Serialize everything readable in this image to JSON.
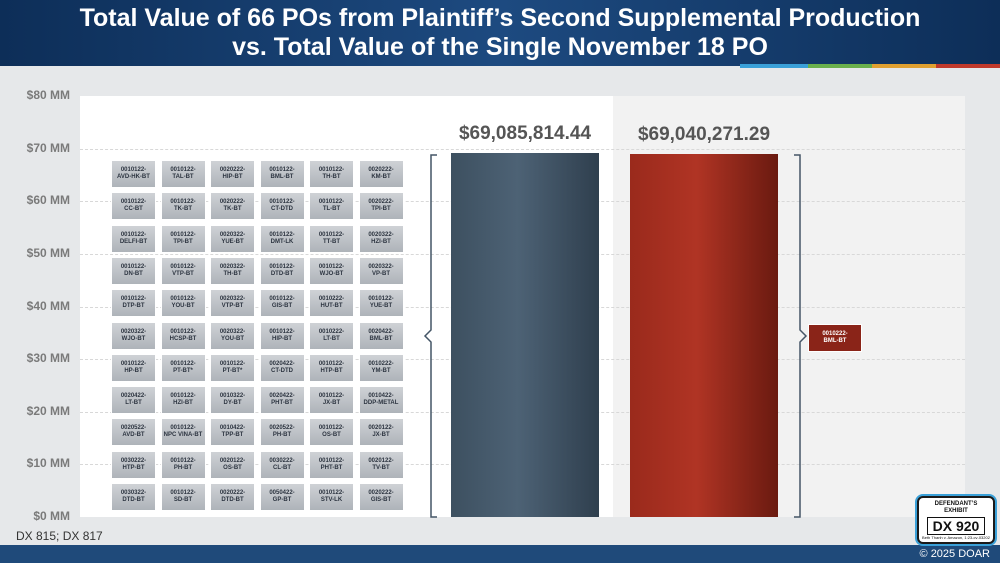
{
  "title_line1": "Total Value of 66 POs from Plaintiff’s Second Supplemental Production",
  "title_line2": "vs. Total Value of the Single November 18 PO",
  "colors": {
    "header": "#123a6b",
    "accent": [
      "#3aa0d8",
      "#6ab04c",
      "#e0a030",
      "#c0392b"
    ],
    "bar_blue": "#4a5d6e",
    "bar_red": "#a8301f"
  },
  "chart_data": {
    "type": "bar",
    "categories": [
      "66 POs from Plaintiff’s Second Supplemental Production",
      "Single November 18 PO"
    ],
    "values": [
      69085814.44,
      69040271.29
    ],
    "value_labels": [
      "$69,085,814.44",
      "$69,040,271.29"
    ],
    "ylim": [
      0,
      80000000
    ],
    "yticks": [
      "$0 MM",
      "$10 MM",
      "$20 MM",
      "$30 MM",
      "$40 MM",
      "$50 MM",
      "$60 MM",
      "$70 MM",
      "$80 MM"
    ],
    "grid": true,
    "po_grid": [
      [
        "0010122-\nAVD-HK-BT",
        "0010122-\nTAL-BT",
        "0020222-\nHIP-BT",
        "0010122-\nBML-BT",
        "0010122-\nTH-BT",
        "0020222-\nKM-BT"
      ],
      [
        "0010122-\nCC-BT",
        "0010122-\nTK-BT",
        "0020222-\nTK-BT",
        "0010122-\nCT-DTD",
        "0010122-\nTL-BT",
        "0020222-\nTPI-BT"
      ],
      [
        "0010122-\nDELFI-BT",
        "0010122-\nTPI-BT",
        "0020322-\nYUE-BT",
        "0010122-\nDMT-LK",
        "0010122-\nTT-BT",
        "0020322-\nHZI-BT"
      ],
      [
        "0010122-\nDN-BT",
        "0010122-\nVTP-BT",
        "0020322-\nTH-BT",
        "0010122-\nDTD-BT",
        "0010122-\nWJO-BT",
        "0020322-\nVP-BT"
      ],
      [
        "0010122-\nDTP-BT",
        "0010122-\nYOU-BT",
        "0020322-\nVTP-BT",
        "0010122-\nGIS-BT",
        "0010222-\nHUT-BT",
        "0010122-\nYUE-BT"
      ],
      [
        "0020322-\nWJO-BT",
        "0010122-\nHCSP-BT",
        "0020322-\nYOU-BT",
        "0010122-\nHIP-BT",
        "0010222-\nLT-BT",
        "0020422-\nBML-BT"
      ],
      [
        "0010122-\nHP-BT",
        "0010122-\nPT-BT*",
        "0010122-\nPT-BT*",
        "0020422-\nCT-DTD",
        "0010122-\nHTP-BT",
        "0010222-\nYM-BT"
      ],
      [
        "0020422-\nLT-BT",
        "0010122-\nHZI-BT",
        "0010322-\nDY-BT",
        "0020422-\nPHT-BT",
        "0010122-\nJX-BT",
        "0010422-\nDDP-METAL"
      ],
      [
        "0020522-\nAVD-BT",
        "0010122-\nNPC VINA-BT",
        "0010422-\nTPP-BT",
        "0020522-\nPH-BT",
        "0010122-\nOS-BT",
        "0020122-\nJX-BT"
      ],
      [
        "0030222-\nHTP-BT",
        "0010122-\nPH-BT",
        "0020122-\nOS-BT",
        "0030222-\nCL-BT",
        "0010122-\nPHT-BT",
        "0020122-\nTV-BT"
      ],
      [
        "0030322-\nDTD-BT",
        "0010122-\nSD-BT",
        "0020222-\nDTD-BT",
        "0050422-\nGP-BT",
        "0010122-\nSTV-LK",
        "0020222-\nGIS-BT"
      ]
    ],
    "single_po": "0010222-\nBML-BT"
  },
  "source": "DX 815; DX 817",
  "copyright": "© 2025 DOAR",
  "exhibit": {
    "line1": "DEFENDANT’S\nEXHIBIT",
    "number": "DX 920",
    "line3": "Beth Thanh v. Amazon, 1:23-cv-03202"
  }
}
